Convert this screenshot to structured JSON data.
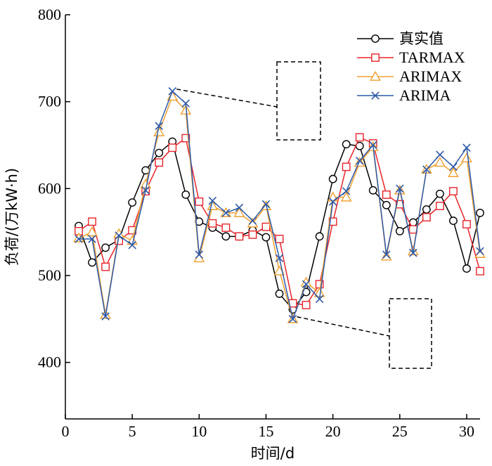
{
  "chart_data": {
    "type": "line",
    "title": "",
    "xlabel": "时间/d",
    "ylabel": "负荷/(万kW·h)",
    "xlim": [
      0,
      31
    ],
    "ylim": [
      335,
      800
    ],
    "xticks": [
      0,
      5,
      10,
      15,
      20,
      25,
      30
    ],
    "yticks": [
      400,
      500,
      600,
      700,
      800
    ],
    "grid": false,
    "legend_position": "top-right",
    "x": [
      1,
      2,
      3,
      4,
      5,
      6,
      7,
      8,
      9,
      10,
      11,
      12,
      13,
      14,
      15,
      16,
      17,
      18,
      19,
      20,
      21,
      22,
      23,
      24,
      25,
      26,
      27,
      28,
      29,
      30,
      31
    ],
    "series": [
      {
        "name": "真实值",
        "color": "#000000",
        "marker": "circle",
        "values": [
          557,
          515,
          532,
          541,
          584,
          621,
          641,
          654,
          593,
          562,
          555,
          545,
          545,
          552,
          544,
          479,
          461,
          481,
          545,
          611,
          651,
          649,
          598,
          581,
          551,
          561,
          576,
          594,
          563,
          508,
          572
        ]
      },
      {
        "name": "TARMAX",
        "color": "#e8242a",
        "marker": "square",
        "values": [
          551,
          562,
          510,
          540,
          552,
          597,
          630,
          647,
          658,
          585,
          560,
          555,
          545,
          547,
          556,
          542,
          468,
          466,
          490,
          562,
          625,
          659,
          652,
          593,
          582,
          553,
          567,
          580,
          597,
          559,
          505
        ]
      },
      {
        "name": "ARIMAX",
        "color": "#f0a030",
        "marker": "triangle",
        "values": [
          543,
          550,
          455,
          548,
          540,
          605,
          665,
          706,
          690,
          520,
          580,
          572,
          572,
          560,
          580,
          505,
          450,
          492,
          480,
          590,
          590,
          630,
          648,
          522,
          598,
          528,
          622,
          630,
          618,
          635,
          525
        ]
      },
      {
        "name": "ARIMA",
        "color": "#2d59a8",
        "marker": "x",
        "values": [
          542,
          542,
          453,
          546,
          535,
          598,
          672,
          712,
          698,
          524,
          586,
          572,
          578,
          563,
          582,
          520,
          450,
          490,
          473,
          585,
          597,
          632,
          650,
          524,
          600,
          526,
          622,
          639,
          625,
          647,
          528
        ]
      }
    ],
    "zoom_boxes": [
      {
        "x": [
          17,
          18,
          19
        ],
        "y_range": [
          655,
          745
        ]
      },
      {
        "x": [
          24,
          25,
          26,
          27
        ],
        "y_range": [
          390,
          470
        ]
      }
    ]
  }
}
